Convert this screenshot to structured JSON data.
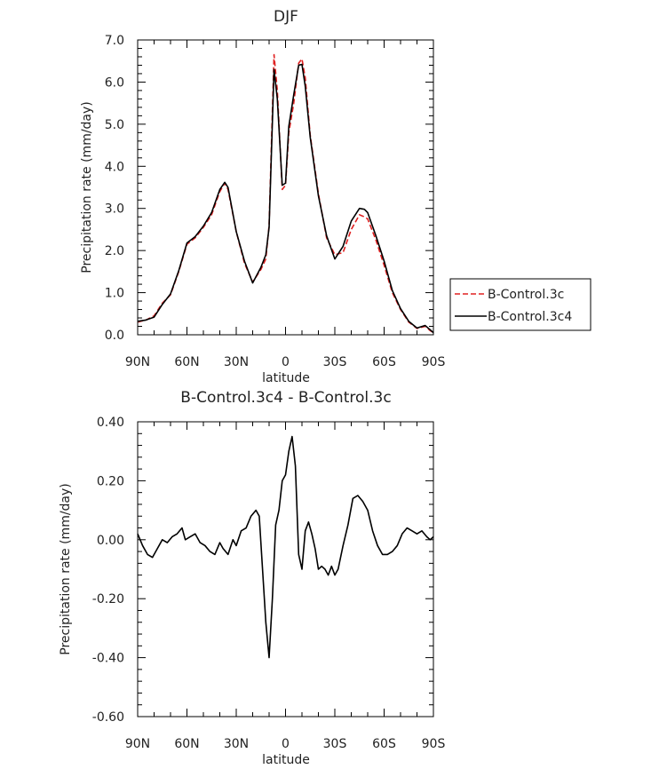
{
  "chart_data": [
    {
      "type": "line",
      "title": "DJF",
      "xlabel": "latitude",
      "ylabel": "Precipitation rate (mm/day)",
      "xlim": [
        90,
        -90
      ],
      "ylim": [
        0,
        7
      ],
      "grid": false,
      "legend_position": "right",
      "xtick_values": [
        90,
        60,
        30,
        0,
        -30,
        -60,
        -90
      ],
      "xtick_labels": [
        "90N",
        "60N",
        "30N",
        "0",
        "30S",
        "60S",
        "90S"
      ],
      "ytick_values": [
        0,
        1,
        2,
        3,
        4,
        5,
        6,
        7
      ],
      "ytick_labels": [
        "0.0",
        "1.0",
        "2.0",
        "3.0",
        "4.0",
        "5.0",
        "6.0",
        "7.0"
      ],
      "x": [
        90,
        85,
        80,
        75,
        70,
        65,
        60,
        55,
        50,
        45,
        40,
        37,
        35,
        30,
        25,
        20,
        15,
        12,
        10,
        7,
        5,
        2,
        0,
        -2,
        -5,
        -8,
        -10,
        -12,
        -15,
        -20,
        -25,
        -30,
        -35,
        -40,
        -45,
        -48,
        -50,
        -55,
        -60,
        -65,
        -70,
        -75,
        -80,
        -85,
        -88,
        -90
      ],
      "series": [
        {
          "name": "B-Control.3c",
          "color": "#e02020",
          "dash": "dashed",
          "values": [
            0.3,
            0.35,
            0.45,
            0.75,
            0.95,
            1.5,
            2.15,
            2.3,
            2.55,
            2.85,
            3.4,
            3.6,
            3.45,
            2.45,
            1.7,
            1.25,
            1.55,
            1.8,
            2.6,
            6.65,
            5.8,
            3.45,
            3.55,
            4.8,
            5.5,
            6.45,
            6.55,
            6.1,
            4.75,
            3.35,
            2.3,
            1.9,
            1.95,
            2.5,
            2.85,
            2.8,
            2.75,
            2.25,
            1.65,
            1.0,
            0.6,
            0.3,
            0.15,
            0.2,
            0.1,
            0.05
          ]
        },
        {
          "name": "B-Control.3c4",
          "color": "#000000",
          "dash": "solid",
          "values": [
            0.32,
            0.35,
            0.42,
            0.72,
            0.97,
            1.52,
            2.18,
            2.33,
            2.58,
            2.9,
            3.45,
            3.62,
            3.5,
            2.45,
            1.75,
            1.23,
            1.6,
            1.9,
            2.55,
            6.3,
            5.6,
            3.55,
            3.6,
            4.95,
            5.7,
            6.4,
            6.42,
            5.9,
            4.7,
            3.3,
            2.35,
            1.8,
            2.1,
            2.7,
            3.0,
            2.98,
            2.9,
            2.35,
            1.75,
            1.05,
            0.62,
            0.32,
            0.16,
            0.22,
            0.12,
            0.05
          ]
        }
      ]
    },
    {
      "type": "line",
      "title": "B-Control.3c4 - B-Control.3c",
      "xlabel": "latitude",
      "ylabel": "Precipitation rate (mm/day)",
      "xlim": [
        90,
        -90
      ],
      "ylim": [
        -0.6,
        0.4
      ],
      "grid": false,
      "xtick_values": [
        90,
        60,
        30,
        0,
        -30,
        -60,
        -90
      ],
      "xtick_labels": [
        "90N",
        "60N",
        "30N",
        "0",
        "30S",
        "60S",
        "90S"
      ],
      "ytick_values": [
        -0.6,
        -0.4,
        -0.2,
        0.0,
        0.2,
        0.4
      ],
      "ytick_labels": [
        "-0.60",
        "-0.40",
        "-0.20",
        "0.00",
        "0.20",
        "0.40"
      ],
      "x": [
        90,
        87,
        84,
        81,
        78,
        75,
        72,
        69,
        66,
        63,
        61,
        58,
        55,
        52,
        49,
        46,
        43,
        40,
        38,
        35,
        32,
        30,
        27,
        24,
        21,
        18,
        16,
        14,
        12,
        10,
        8,
        6,
        4,
        2,
        0,
        -2,
        -4,
        -6,
        -8,
        -10,
        -12,
        -14,
        -16,
        -18,
        -20,
        -22,
        -24,
        -26,
        -28,
        -30,
        -32,
        -35,
        -38,
        -41,
        -44,
        -47,
        -50,
        -53,
        -56,
        -59,
        -62,
        -65,
        -68,
        -71,
        -74,
        -77,
        -80,
        -83,
        -86,
        -88,
        -90
      ],
      "series": [
        {
          "name": "",
          "color": "#000000",
          "dash": "solid",
          "values": [
            0.02,
            -0.02,
            -0.05,
            -0.06,
            -0.03,
            0.0,
            -0.01,
            0.01,
            0.02,
            0.04,
            0.0,
            0.01,
            0.02,
            -0.01,
            -0.02,
            -0.04,
            -0.05,
            -0.01,
            -0.03,
            -0.05,
            0.0,
            -0.02,
            0.03,
            0.04,
            0.08,
            0.1,
            0.08,
            -0.1,
            -0.28,
            -0.4,
            -0.2,
            0.05,
            0.1,
            0.2,
            0.22,
            0.3,
            0.35,
            0.25,
            -0.05,
            -0.1,
            0.03,
            0.06,
            0.02,
            -0.03,
            -0.1,
            -0.09,
            -0.1,
            -0.12,
            -0.09,
            -0.12,
            -0.1,
            -0.02,
            0.05,
            0.14,
            0.15,
            0.13,
            0.1,
            0.03,
            -0.02,
            -0.05,
            -0.05,
            -0.04,
            -0.02,
            0.02,
            0.04,
            0.03,
            0.02,
            0.03,
            0.01,
            0.0,
            0.01
          ]
        }
      ]
    }
  ]
}
